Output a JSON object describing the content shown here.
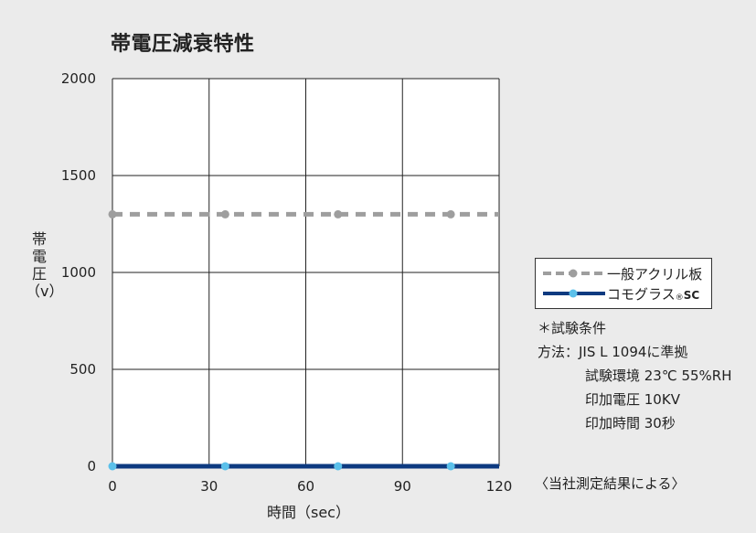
{
  "chart_data": {
    "type": "line",
    "title": "帯電圧減衰特性",
    "ylabel_chars": [
      "帯",
      "電",
      "圧",
      "（v）"
    ],
    "xlabel": "時間（sec）",
    "x": [
      0,
      35,
      70,
      105
    ],
    "xticks": [
      0,
      30,
      60,
      90,
      120
    ],
    "yticks": [
      0,
      500,
      1000,
      1500,
      2000
    ],
    "xlim": [
      0,
      120
    ],
    "ylim": [
      0,
      2000
    ],
    "grid": true,
    "legend_position": "right",
    "series": [
      {
        "name": "一般アクリル板",
        "values": [
          1300,
          1300,
          1300,
          1300
        ],
        "style": "dashed",
        "line_color": "#9e9e9e",
        "marker_color": "#9e9e9e"
      },
      {
        "name": "コモグラス",
        "name_suffix": "®",
        "name_tail": "SC",
        "values": [
          0,
          0,
          0,
          0
        ],
        "style": "solid",
        "line_color": "#0d3a80",
        "marker_color": "#5bc0ea"
      }
    ]
  },
  "conditions": {
    "heading": "＊試験条件",
    "lines": [
      "方法：JIS L 1094に準拠",
      "試験環境 23℃ 55%RH",
      "印加電圧 10KV",
      "印加時間 30秒"
    ]
  },
  "footnote": "〈当社測定結果による〉"
}
